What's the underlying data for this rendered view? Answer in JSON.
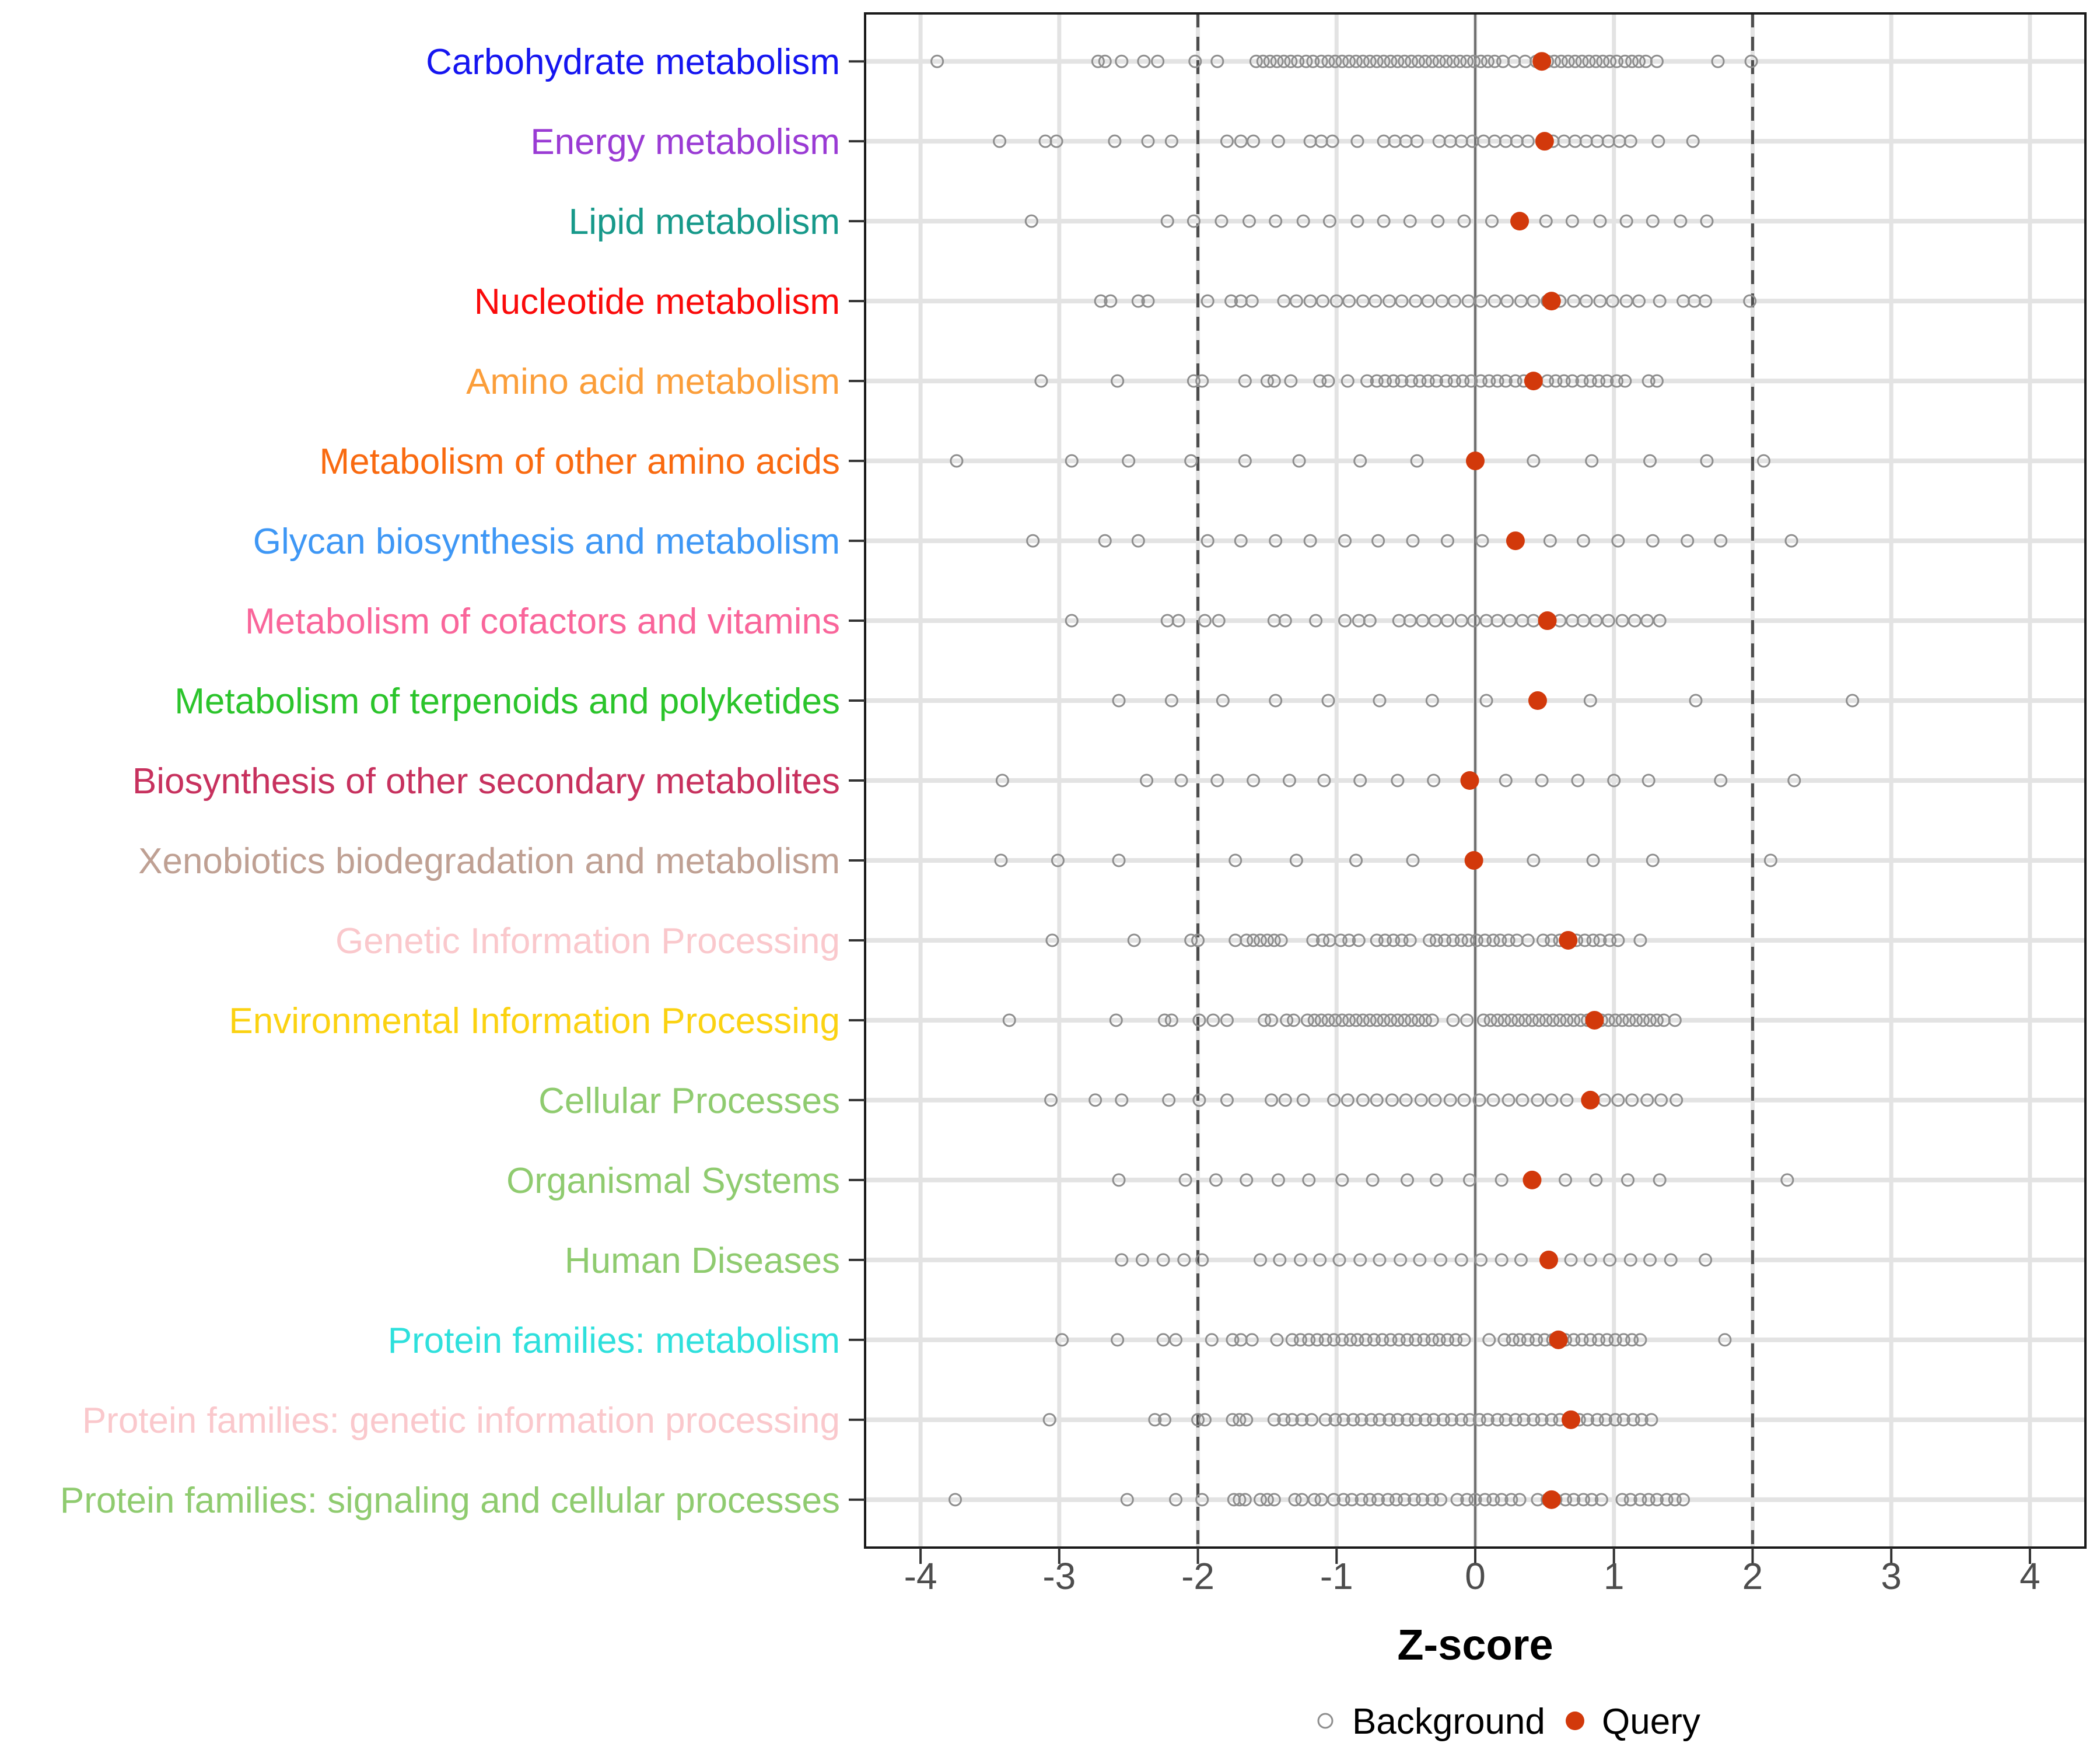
{
  "chart_data": {
    "type": "scatter",
    "title": "",
    "xlabel": "Z-score",
    "xlim": [
      -4.4,
      4.4
    ],
    "x_ticks": [
      -4,
      -3,
      -2,
      -1,
      0,
      1,
      2,
      3,
      4
    ],
    "grid": true,
    "reference_lines": {
      "solid_at": 0,
      "dashed_at": [
        -2,
        2
      ]
    },
    "legend_position": "bottom",
    "legend": [
      {
        "label": "Background",
        "marker": "open-circle",
        "color": "#8E8E8E"
      },
      {
        "label": "Query",
        "marker": "filled-circle",
        "color": "#D2390B"
      }
    ],
    "series": [
      {
        "name": "Carbohydrate metabolism",
        "label_color": "#1515F0",
        "query": 0.48,
        "background": [
          -3.88,
          -2.72,
          -2.67,
          -2.55,
          -2.39,
          -2.29,
          -2.02,
          -1.86,
          -1.58,
          -1.53,
          -1.48,
          -1.43,
          -1.38,
          -1.33,
          -1.28,
          -1.22,
          -1.17,
          -1.11,
          -1.06,
          -1.01,
          -0.96,
          -0.91,
          -0.86,
          -0.81,
          -0.76,
          -0.71,
          -0.66,
          -0.61,
          -0.56,
          -0.51,
          -0.46,
          -0.41,
          -0.36,
          -0.31,
          -0.26,
          -0.21,
          -0.16,
          -0.11,
          -0.06,
          -0.01,
          0.04,
          0.09,
          0.14,
          0.2,
          0.28,
          0.36,
          0.44,
          0.52,
          0.57,
          0.62,
          0.67,
          0.72,
          0.77,
          0.82,
          0.87,
          0.92,
          0.97,
          1.02,
          1.08,
          1.13,
          1.18,
          1.23,
          1.31,
          1.75,
          1.99
        ]
      },
      {
        "name": "Energy metabolism",
        "label_color": "#9A3BD4",
        "query": 0.5,
        "background": [
          -3.43,
          -3.1,
          -3.02,
          -2.6,
          -2.36,
          -2.19,
          -1.79,
          -1.69,
          -1.6,
          -1.42,
          -1.19,
          -1.11,
          -1.03,
          -0.85,
          -0.66,
          -0.58,
          -0.5,
          -0.42,
          -0.26,
          -0.18,
          -0.1,
          -0.02,
          0.06,
          0.14,
          0.22,
          0.3,
          0.38,
          0.56,
          0.64,
          0.72,
          0.8,
          0.88,
          0.96,
          1.04,
          1.12,
          1.32,
          1.57
        ]
      },
      {
        "name": "Lipid metabolism",
        "label_color": "#17998A",
        "query": 0.32,
        "background": [
          -3.2,
          -2.22,
          -2.03,
          -1.83,
          -1.63,
          -1.44,
          -1.24,
          -1.05,
          -0.85,
          -0.66,
          -0.47,
          -0.27,
          -0.08,
          0.12,
          0.51,
          0.7,
          0.9,
          1.09,
          1.28,
          1.48,
          1.67
        ]
      },
      {
        "name": "Nucleotide metabolism",
        "label_color": "#FA0A0A",
        "query": 0.55,
        "background": [
          -2.7,
          -2.63,
          -2.43,
          -2.36,
          -1.93,
          -1.76,
          -1.69,
          -1.61,
          -1.38,
          -1.29,
          -1.19,
          -1.1,
          -1.0,
          -0.91,
          -0.81,
          -0.72,
          -0.62,
          -0.53,
          -0.43,
          -0.34,
          -0.24,
          -0.15,
          -0.05,
          0.04,
          0.14,
          0.23,
          0.33,
          0.42,
          0.52,
          0.61,
          0.71,
          0.8,
          0.9,
          0.99,
          1.09,
          1.18,
          1.33,
          1.5,
          1.58,
          1.66,
          1.98
        ]
      },
      {
        "name": "Amino acid metabolism",
        "label_color": "#FB9E3A",
        "query": 0.42,
        "background": [
          -3.13,
          -2.58,
          -2.03,
          -1.97,
          -1.66,
          -1.5,
          -1.45,
          -1.33,
          -1.12,
          -1.06,
          -0.92,
          -0.78,
          -0.71,
          -0.65,
          -0.59,
          -0.53,
          -0.46,
          -0.4,
          -0.34,
          -0.28,
          -0.21,
          -0.15,
          -0.09,
          -0.03,
          0.04,
          0.1,
          0.16,
          0.22,
          0.29,
          0.35,
          0.52,
          0.58,
          0.64,
          0.7,
          0.77,
          0.83,
          0.89,
          0.95,
          1.02,
          1.08,
          1.25,
          1.31
        ]
      },
      {
        "name": "Metabolism of other amino acids",
        "label_color": "#F96A10",
        "query": 0.0,
        "background": [
          -3.74,
          -2.91,
          -2.5,
          -2.05,
          -1.66,
          -1.27,
          -0.83,
          -0.42,
          0.42,
          0.84,
          1.26,
          1.67,
          2.08
        ]
      },
      {
        "name": "Glycan biosynthesis and metabolism",
        "label_color": "#3E97F5",
        "query": 0.29,
        "background": [
          -3.19,
          -2.67,
          -2.43,
          -1.93,
          -1.69,
          -1.44,
          -1.19,
          -0.94,
          -0.7,
          -0.45,
          -0.2,
          0.05,
          0.54,
          0.78,
          1.03,
          1.28,
          1.53,
          1.77,
          2.28
        ]
      },
      {
        "name": "Metabolism of cofactors and vitamins",
        "label_color": "#F9659A",
        "query": 0.52,
        "background": [
          -2.91,
          -2.22,
          -2.14,
          -1.95,
          -1.85,
          -1.45,
          -1.37,
          -1.15,
          -0.94,
          -0.84,
          -0.76,
          -0.55,
          -0.47,
          -0.38,
          -0.29,
          -0.2,
          -0.1,
          -0.01,
          0.08,
          0.16,
          0.25,
          0.34,
          0.42,
          0.61,
          0.7,
          0.78,
          0.87,
          0.96,
          1.06,
          1.15,
          1.24,
          1.33
        ]
      },
      {
        "name": "Metabolism of terpenoids and polyketides",
        "label_color": "#2BC42B",
        "query": 0.45,
        "background": [
          -2.57,
          -2.19,
          -1.82,
          -1.44,
          -1.06,
          -0.69,
          -0.31,
          0.08,
          0.83,
          1.59,
          2.72
        ]
      },
      {
        "name": "Biosynthesis of other secondary metabolites",
        "label_color": "#C7315E",
        "query": -0.04,
        "background": [
          -3.41,
          -2.37,
          -2.12,
          -1.86,
          -1.6,
          -1.34,
          -1.09,
          -0.83,
          -0.56,
          -0.3,
          0.22,
          0.48,
          0.74,
          1.0,
          1.25,
          1.77,
          2.3
        ]
      },
      {
        "name": "Xenobiotics biodegradation and metabolism",
        "label_color": "#BFA093",
        "query": -0.01,
        "background": [
          -3.42,
          -3.01,
          -2.57,
          -1.73,
          -1.29,
          -0.86,
          -0.45,
          0.42,
          0.85,
          1.28,
          2.13
        ]
      },
      {
        "name": "Genetic Information Processing",
        "label_color": "#FAC8CC",
        "query": 0.67,
        "background": [
          -3.05,
          -2.46,
          -2.05,
          -2.0,
          -1.73,
          -1.65,
          -1.6,
          -1.55,
          -1.5,
          -1.45,
          -1.4,
          -1.17,
          -1.1,
          -1.05,
          -0.97,
          -0.91,
          -0.84,
          -0.71,
          -0.65,
          -0.59,
          -0.53,
          -0.47,
          -0.33,
          -0.28,
          -0.22,
          -0.16,
          -0.1,
          -0.05,
          0.01,
          0.07,
          0.13,
          0.18,
          0.24,
          0.3,
          0.38,
          0.49,
          0.55,
          0.61,
          0.73,
          0.79,
          0.85,
          0.9,
          0.97,
          1.03,
          1.19
        ]
      },
      {
        "name": "Environmental Information Processing",
        "label_color": "#FBD211",
        "query": 0.86,
        "background": [
          -3.36,
          -2.59,
          -2.24,
          -2.19,
          -1.99,
          -1.89,
          -1.79,
          -1.52,
          -1.47,
          -1.36,
          -1.31,
          -1.21,
          -1.16,
          -1.11,
          -1.06,
          -1.01,
          -0.96,
          -0.91,
          -0.86,
          -0.81,
          -0.76,
          -0.71,
          -0.66,
          -0.61,
          -0.56,
          -0.51,
          -0.46,
          -0.41,
          -0.36,
          -0.31,
          -0.16,
          -0.06,
          0.06,
          0.11,
          0.16,
          0.21,
          0.26,
          0.31,
          0.36,
          0.41,
          0.46,
          0.51,
          0.56,
          0.61,
          0.66,
          0.71,
          0.76,
          0.81,
          0.91,
          0.96,
          1.01,
          1.06,
          1.11,
          1.16,
          1.21,
          1.26,
          1.31,
          1.36,
          1.44
        ]
      },
      {
        "name": "Cellular Processes",
        "label_color": "#8FCB6F",
        "query": 0.83,
        "background": [
          -3.06,
          -2.74,
          -2.55,
          -2.21,
          -1.99,
          -1.79,
          -1.47,
          -1.37,
          -1.24,
          -1.02,
          -0.92,
          -0.81,
          -0.71,
          -0.6,
          -0.5,
          -0.39,
          -0.29,
          -0.18,
          -0.08,
          0.03,
          0.13,
          0.24,
          0.34,
          0.45,
          0.55,
          0.66,
          0.93,
          1.03,
          1.13,
          1.24,
          1.34,
          1.45
        ]
      },
      {
        "name": "Organismal Systems",
        "label_color": "#8FCB6F",
        "query": 0.41,
        "background": [
          -2.57,
          -2.09,
          -1.87,
          -1.65,
          -1.42,
          -1.2,
          -0.96,
          -0.74,
          -0.49,
          -0.28,
          -0.04,
          0.19,
          0.65,
          0.87,
          1.1,
          1.33,
          2.25
        ]
      },
      {
        "name": "Human Diseases",
        "label_color": "#8FCB6F",
        "query": 0.53,
        "background": [
          -2.55,
          -2.4,
          -2.25,
          -2.1,
          -1.97,
          -1.55,
          -1.41,
          -1.26,
          -1.12,
          -0.98,
          -0.83,
          -0.69,
          -0.54,
          -0.4,
          -0.25,
          -0.1,
          0.04,
          0.19,
          0.33,
          0.69,
          0.83,
          0.97,
          1.12,
          1.26,
          1.41,
          1.66
        ]
      },
      {
        "name": "Protein families: metabolism",
        "label_color": "#2EE0DC",
        "query": 0.6,
        "background": [
          -2.98,
          -2.58,
          -2.25,
          -2.16,
          -1.9,
          -1.75,
          -1.69,
          -1.61,
          -1.43,
          -1.32,
          -1.26,
          -1.2,
          -1.14,
          -1.08,
          -1.02,
          -0.96,
          -0.9,
          -0.85,
          -0.79,
          -0.73,
          -0.67,
          -0.61,
          -0.55,
          -0.49,
          -0.43,
          -0.37,
          -0.31,
          -0.26,
          -0.2,
          -0.14,
          -0.08,
          0.1,
          0.21,
          0.27,
          0.32,
          0.38,
          0.44,
          0.5,
          0.56,
          0.65,
          0.71,
          0.77,
          0.83,
          0.89,
          0.95,
          1.01,
          1.07,
          1.13,
          1.19,
          1.8
        ]
      },
      {
        "name": "Protein families: genetic information processing",
        "label_color": "#FAC8CC",
        "query": 0.69,
        "background": [
          -3.07,
          -2.31,
          -2.24,
          -2.0,
          -1.95,
          -1.75,
          -1.7,
          -1.65,
          -1.45,
          -1.38,
          -1.32,
          -1.25,
          -1.18,
          -1.08,
          -1.01,
          -0.95,
          -0.88,
          -0.82,
          -0.75,
          -0.69,
          -0.62,
          -0.56,
          -0.49,
          -0.43,
          -0.36,
          -0.3,
          -0.23,
          -0.17,
          -0.1,
          -0.04,
          0.03,
          0.09,
          0.16,
          0.22,
          0.29,
          0.35,
          0.42,
          0.48,
          0.55,
          0.61,
          0.75,
          0.81,
          0.88,
          0.94,
          1.01,
          1.07,
          1.14,
          1.2,
          1.27
        ]
      },
      {
        "name": "Protein families: signaling and cellular processes",
        "label_color": "#8FCB6F",
        "query": 0.55,
        "background": [
          -3.75,
          -2.51,
          -2.16,
          -1.97,
          -1.74,
          -1.7,
          -1.66,
          -1.55,
          -1.5,
          -1.45,
          -1.3,
          -1.25,
          -1.16,
          -1.11,
          -1.02,
          -0.95,
          -0.89,
          -0.82,
          -0.76,
          -0.7,
          -0.63,
          -0.57,
          -0.51,
          -0.44,
          -0.38,
          -0.31,
          -0.25,
          -0.13,
          -0.06,
          0.0,
          0.07,
          0.13,
          0.19,
          0.26,
          0.32,
          0.45,
          0.52,
          0.58,
          0.65,
          0.71,
          0.78,
          0.84,
          0.91,
          1.06,
          1.12,
          1.19,
          1.25,
          1.31,
          1.38,
          1.44,
          1.5
        ]
      }
    ]
  },
  "colors": {
    "background_point_stroke": "#8E8E8E",
    "query_point_fill": "#D2390B",
    "grid": "#E3E3E3",
    "zero_line": "#707070",
    "dashed_line": "#4D4D4D",
    "panel_border": "#1A1A1A",
    "tick": "#333333",
    "tick_label": "#4D4D4D"
  }
}
